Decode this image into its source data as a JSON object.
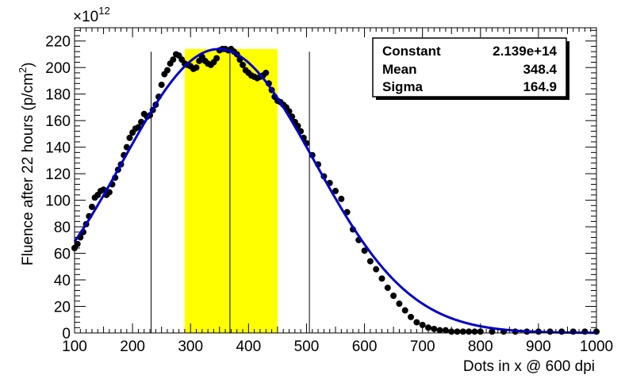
{
  "chart_data": {
    "type": "scatter",
    "title": "",
    "xlabel": "Dots in x @ 600 dpi",
    "ylabel": "Fluence after 22 hours (p/cm",
    "ylabel_sup": "2",
    "ylabel_tail": ")",
    "y_multiplier": {
      "base": "×10",
      "exponent": "12"
    },
    "xlim": [
      100,
      1000
    ],
    "ylim": [
      0,
      230
    ],
    "x_major_ticks": [
      100,
      200,
      300,
      400,
      500,
      600,
      700,
      800,
      900,
      1000
    ],
    "x_tick_labels": [
      "100",
      "200",
      "300",
      "400",
      "500",
      "600",
      "700",
      "800",
      "900",
      "1000"
    ],
    "y_major_ticks": [
      0,
      20,
      40,
      60,
      80,
      100,
      120,
      140,
      160,
      180,
      200,
      220
    ],
    "y_tick_labels": [
      "0",
      "20",
      "40",
      "60",
      "80",
      "100",
      "120",
      "140",
      "160",
      "180",
      "200",
      "220"
    ],
    "highlight_band": {
      "x_from": 290,
      "x_to": 450,
      "y_from": 0,
      "y_to": 214,
      "color": "#ffff00"
    },
    "vertical_lines": [
      232,
      368,
      505
    ],
    "fit": {
      "name": "gaus",
      "color": "#0000cc",
      "stats": [
        {
          "label": "Constant",
          "value": "2.139e+14"
        },
        {
          "label": "Mean",
          "value": "348.4"
        },
        {
          "label": "Sigma",
          "value": "164.9"
        }
      ],
      "constant": 213.9,
      "mean": 348.4,
      "sigma": 164.9
    },
    "series": [
      {
        "name": "data",
        "marker": "filled-circle",
        "color": "#000000",
        "x": [
          100,
          105,
          110,
          115,
          120,
          125,
          130,
          135,
          140,
          145,
          150,
          155,
          160,
          165,
          170,
          175,
          180,
          185,
          190,
          195,
          200,
          205,
          210,
          215,
          220,
          225,
          230,
          235,
          240,
          245,
          250,
          255,
          260,
          265,
          270,
          275,
          280,
          285,
          290,
          295,
          300,
          305,
          310,
          315,
          320,
          325,
          330,
          335,
          340,
          345,
          350,
          355,
          360,
          365,
          370,
          375,
          380,
          385,
          390,
          395,
          400,
          405,
          410,
          415,
          420,
          425,
          430,
          435,
          440,
          445,
          450,
          455,
          460,
          465,
          470,
          475,
          480,
          485,
          490,
          495,
          500,
          510,
          520,
          530,
          540,
          550,
          560,
          570,
          580,
          590,
          600,
          610,
          620,
          630,
          640,
          650,
          660,
          670,
          680,
          690,
          700,
          710,
          720,
          730,
          740,
          750,
          760,
          770,
          780,
          790,
          800,
          820,
          840,
          860,
          880,
          900,
          920,
          940,
          960,
          980,
          1000
        ],
        "y": [
          64,
          67,
          72,
          76,
          82,
          88,
          95,
          102,
          104,
          107,
          108,
          104,
          106,
          112,
          117,
          123,
          127,
          134,
          140,
          147,
          151,
          154,
          155,
          159,
          165,
          163,
          164,
          168,
          172,
          178,
          187,
          195,
          198,
          203,
          206,
          210,
          209,
          206,
          203,
          202,
          201,
          199,
          200,
          205,
          208,
          205,
          203,
          202,
          204,
          207,
          213,
          214,
          214,
          213,
          214,
          212,
          210,
          206,
          202,
          198,
          196,
          194,
          193,
          192,
          193,
          194,
          196,
          188,
          183,
          178,
          175,
          174,
          172,
          170,
          167,
          163,
          159,
          156,
          152,
          147,
          143,
          134,
          127,
          118,
          113,
          107,
          101,
          91,
          78,
          70,
          62,
          54,
          48,
          41,
          34,
          28,
          22,
          17,
          12,
          8,
          6,
          4,
          3,
          2,
          2,
          1,
          1,
          1,
          1,
          1,
          1,
          1,
          1,
          1,
          1,
          1,
          1,
          1,
          1,
          1,
          1
        ]
      }
    ]
  }
}
